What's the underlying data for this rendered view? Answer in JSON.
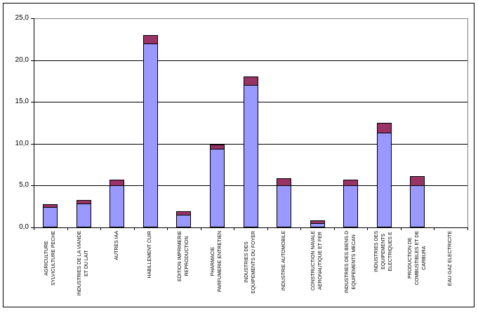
{
  "window": {
    "background": "#FFFFFF",
    "border_color": "#000000"
  },
  "chart_data": {
    "type": "bar",
    "stacked": true,
    "title": "",
    "xlabel": "",
    "ylabel": "",
    "categories": [
      "AGRICULTURE\nSYLVICULTURE PECHE",
      "INDUSTRIES DE LA VIANDE\nET DU LAIT",
      "AUTRES IAA",
      "HABILLEMENT CUIR",
      "EDITION IMPRIMERIE\nREPRODUCTION",
      "PHARMACIE\nPARFUMERIE ENTRETIEN",
      "INDUSTRIES DES\nEQUIPEMENTS DU FOYER",
      "INDUSTRIE AUTOMOBILE",
      "CONSTRUCTION NAVALE\nAERONAUTIQUE ET FER",
      "INDUSTRIES DES BIENS D\nEQUIPEMENTS MECAN",
      "INDUSTRIES DES\nEQUIPEMENTS\nELECTRIQUES E",
      "PRODUCTION DE\nCOMBUSTIBLES ET DE\nCARBURA",
      "EAU GAZ ELECTRICITE"
    ],
    "series": [
      {
        "color": "#9999FF",
        "values": [
          2.5,
          2.9,
          5.0,
          22.0,
          1.5,
          9.4,
          17.0,
          5.1,
          0.5,
          5.0,
          11.3,
          5.0,
          0
        ]
      },
      {
        "color": "#993366",
        "values": [
          0.3,
          0.4,
          0.7,
          1.0,
          0.4,
          0.5,
          1.0,
          0.8,
          0.3,
          0.7,
          1.2,
          1.1,
          0
        ]
      }
    ],
    "ylim": [
      0,
      25
    ],
    "ytick_step": 5,
    "ytick_labels": [
      "0,0",
      "5,0",
      "10,0",
      "15,0",
      "20,0",
      "25,0"
    ],
    "grid": true,
    "gridline_color": "#000000",
    "plot_border_color": "#808080",
    "axis_color": "#000000",
    "bar_border_color": "#000000",
    "legend": false
  }
}
